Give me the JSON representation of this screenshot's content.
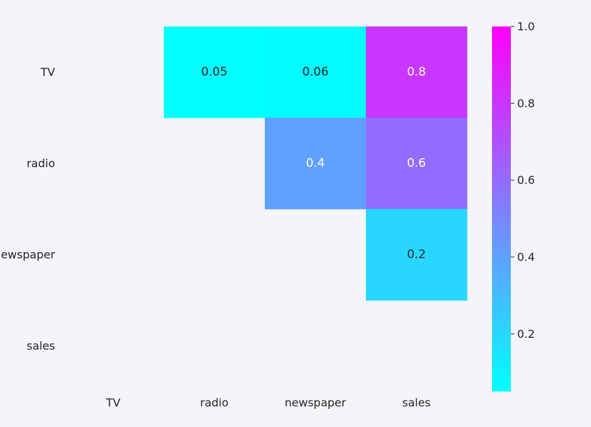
{
  "chart_data": {
    "type": "heatmap",
    "rows": [
      "TV",
      "radio",
      "newspaper",
      "sales"
    ],
    "columns": [
      "TV",
      "radio",
      "newspaper",
      "sales"
    ],
    "mask": "lower-triangle-and-diagonal",
    "cells": [
      {
        "row": "TV",
        "col": "radio",
        "value": 0.05,
        "label": "0.05"
      },
      {
        "row": "TV",
        "col": "newspaper",
        "value": 0.06,
        "label": "0.06"
      },
      {
        "row": "TV",
        "col": "sales",
        "value": 0.8,
        "label": "0.8"
      },
      {
        "row": "radio",
        "col": "newspaper",
        "value": 0.4,
        "label": "0.4"
      },
      {
        "row": "radio",
        "col": "sales",
        "value": 0.6,
        "label": "0.6"
      },
      {
        "row": "newspaper",
        "col": "sales",
        "value": 0.2,
        "label": "0.2"
      }
    ],
    "colormap": "cool",
    "colormap_stops": [
      "#00ffff",
      "#ff00ff"
    ],
    "vmin": 0.05,
    "vmax": 1.0,
    "colorbar": {
      "ticks": [
        0.2,
        0.4,
        0.6,
        0.8,
        1.0
      ],
      "tick_labels": [
        "0.2",
        "0.4",
        "0.6",
        "0.8",
        "1.0"
      ],
      "placement": "right"
    },
    "title": "",
    "xlabel": "",
    "ylabel": "",
    "grid": false
  }
}
